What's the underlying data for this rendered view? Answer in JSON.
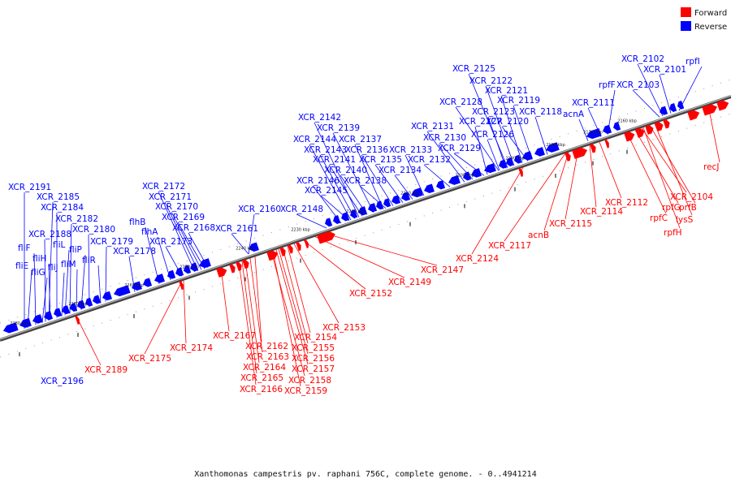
{
  "colors": {
    "forward": "#ff0000",
    "reverse": "#0000ff",
    "axis": "#888888",
    "axisEdge": "#444444"
  },
  "legend": [
    {
      "label": "Forward",
      "color": "#ff0000"
    },
    {
      "label": "Reverse",
      "color": "#0000ff"
    }
  ],
  "caption": "Xanthomonas campestris pv. raphani 756C, complete genome. - 0..4941214",
  "ticks": [
    "2160 kbp",
    "2170 kbp",
    "2180 kbp",
    "2190 kbp",
    "2200 kbp",
    "2210 kbp",
    "2220 kbp",
    "2230 kbp",
    "2240 kbp",
    "2250 kbp",
    "2260 kbp",
    "2270 kbp",
    "2280 kbp"
  ],
  "reverse_labels": [
    "XCR_2102",
    "XCR_2101",
    "rpfI",
    "rpfF",
    "XCR_2103",
    "XCR_2125",
    "XCR_2122",
    "XCR_2121",
    "XCR_2128",
    "XCR_2119",
    "XCR_2123",
    "acnA",
    "XCR_2111",
    "XCR_2127",
    "XCR_2120",
    "XCR_2118",
    "XCR_2131",
    "XCR_2126",
    "XCR_2130",
    "XCR_2129",
    "XCR_2142",
    "XCR_2139",
    "XCR_2144",
    "XCR_2137",
    "XCR_2143",
    "XCR_2136",
    "XCR_2133",
    "XCR_2141",
    "XCR_2135",
    "XCR_2132",
    "XCR_2140",
    "XCR_2134",
    "XCR_2146",
    "XCR_2138",
    "XCR_2145",
    "XCR_2160",
    "XCR_2148",
    "XCR_2161",
    "XCR_2172",
    "XCR_2171",
    "XCR_2170",
    "XCR_2169",
    "flhB",
    "flhA",
    "XCR_2168",
    "XCR_2173",
    "XCR_2191",
    "XCR_2185",
    "XCR_2184",
    "XCR_2182",
    "XCR_2180",
    "XCR_2188",
    "fliL",
    "XCR_2179",
    "fliF",
    "fliP",
    "XCR_2178",
    "fliH",
    "fliR",
    "fliE",
    "fliM",
    "fliG",
    "fliJ",
    "XCR_2196"
  ],
  "forward_labels": [
    "recJ",
    "XCR_2104",
    "prfB",
    "rpfG",
    "rpfC",
    "lysS",
    "rpfH",
    "XCR_2112",
    "XCR_2114",
    "XCR_2115",
    "acnB",
    "XCR_2117",
    "XCR_2124",
    "XCR_2147",
    "XCR_2149",
    "XCR_2152",
    "XCR_2153",
    "XCR_2154",
    "XCR_2155",
    "XCR_2156",
    "XCR_2157",
    "XCR_2158",
    "XCR_2159",
    "XCR_2162",
    "XCR_2163",
    "XCR_2164",
    "XCR_2165",
    "XCR_2166",
    "XCR_2167",
    "XCR_2174",
    "XCR_2175",
    "XCR_2189"
  ]
}
